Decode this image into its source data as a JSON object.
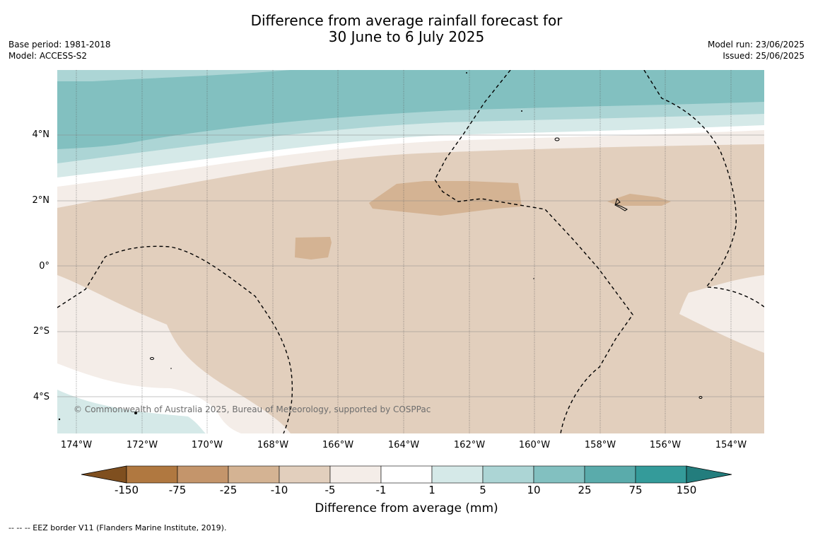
{
  "title": {
    "line1": "Difference from average rainfall forecast for",
    "line2": "30 June to 6 July 2025"
  },
  "meta": {
    "base_period": "Base period: 1981-2018",
    "model": "Model: ACCESS-S2",
    "model_run": "Model run: 23/06/2025",
    "issued": "Issued: 25/06/2025"
  },
  "map": {
    "copyright": "© Commonwealth of Australia 2025, Bureau of Meteorology, supported by COSPPac",
    "lat_labels": [
      "4°N",
      "2°N",
      "0°",
      "2°S",
      "4°S"
    ],
    "lon_labels": [
      "174°W",
      "172°W",
      "170°W",
      "168°W",
      "166°W",
      "164°W",
      "162°W",
      "160°W",
      "158°W",
      "156°W",
      "154°W"
    ]
  },
  "colorbar": {
    "title": "Difference from average (mm)",
    "ticks": [
      "-150",
      "-75",
      "-25",
      "-10",
      "-5",
      "-1",
      "1",
      "5",
      "10",
      "25",
      "75",
      "150"
    ],
    "colors": [
      "#7f4f1f",
      "#b07840",
      "#c4956b",
      "#d4b393",
      "#e2cfbd",
      "#f4ede8",
      "#ffffff",
      "#d5e9e8",
      "#acd5d5",
      "#82c0c0",
      "#5aabab",
      "#349b9a",
      "#237d7d"
    ]
  },
  "legend_note": "--  --  -- EEZ border V11 (Flanders Marine Institute, 2019)."
}
